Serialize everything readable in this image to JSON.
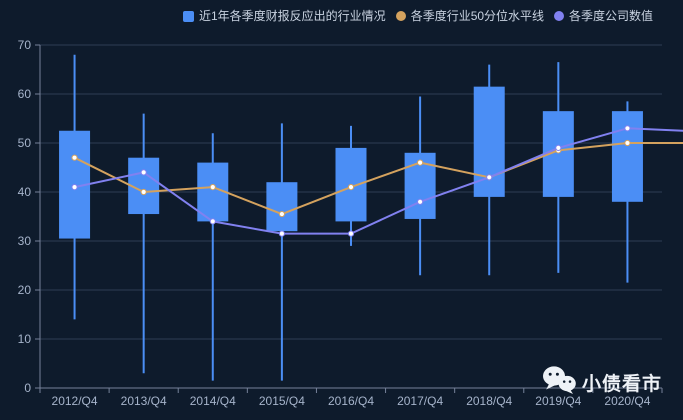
{
  "legend": {
    "items": [
      {
        "label": "近1年各季度财报反应出的行业情况",
        "marker": "square",
        "color": "#4b8ef5"
      },
      {
        "label": "各季度行业50分位水平线",
        "marker": "circle",
        "color": "#d4a25e"
      },
      {
        "label": "各季度公司数值",
        "marker": "circle",
        "color": "#8181f0"
      }
    ]
  },
  "watermark": {
    "text": "小债看市",
    "icon": "wechat-chat-bubbles"
  },
  "colors": {
    "background": "#0e1b2c",
    "bar_fill": "#4b8ef5",
    "median_line": "#d4a25e",
    "company_line": "#8181f0",
    "grid_line": "#2e3d55",
    "axis_line": "#76829a",
    "axis_label": "#a6b4cb",
    "legend_text": "#c9d3e1",
    "watermark_text": "#eef2f7",
    "dot_fill": "#ffffff"
  },
  "chart_data": {
    "type": "candlestick",
    "title": "",
    "xlabel": "",
    "ylabel": "",
    "categories": [
      "2012/Q4",
      "2013/Q4",
      "2014/Q4",
      "2015/Q4",
      "2016/Q4",
      "2017/Q4",
      "2018/Q4",
      "2019/Q4",
      "2020/Q4"
    ],
    "ylim": [
      0,
      70
    ],
    "ytick_interval": 10,
    "grid": "horizontal gridlines on",
    "legend_position": "top-center",
    "series": [
      {
        "name": "近1年各季度财报反应出的行业情况",
        "type": "candlestick",
        "color": "#4b8ef5",
        "boxes": [
          {
            "category": "2012/Q4",
            "low": 14,
            "box_bottom": 30.5,
            "box_top": 52.5,
            "high": 68
          },
          {
            "category": "2013/Q4",
            "low": 3,
            "box_bottom": 35.5,
            "box_top": 47,
            "high": 56
          },
          {
            "category": "2014/Q4",
            "low": 1.5,
            "box_bottom": 34,
            "box_top": 46,
            "high": 52
          },
          {
            "category": "2015/Q4",
            "low": 1.5,
            "box_bottom": 32,
            "box_top": 42,
            "high": 54
          },
          {
            "category": "2016/Q4",
            "low": 29,
            "box_bottom": 34,
            "box_top": 49,
            "high": 53.5
          },
          {
            "category": "2017/Q4",
            "low": 23,
            "box_bottom": 34.5,
            "box_top": 48,
            "high": 59.5
          },
          {
            "category": "2018/Q4",
            "low": 23,
            "box_bottom": 39,
            "box_top": 61.5,
            "high": 66
          },
          {
            "category": "2019/Q4",
            "low": 23.5,
            "box_bottom": 39,
            "box_top": 56.5,
            "high": 66.5
          },
          {
            "category": "2020/Q4",
            "low": 21.5,
            "box_bottom": 38,
            "box_top": 56.5,
            "high": 58.5
          }
        ]
      },
      {
        "name": "各季度行业50分位水平线",
        "type": "line",
        "color": "#d4a25e",
        "values": [
          47,
          40,
          41,
          35.5,
          41,
          46,
          43,
          48.5,
          50
        ],
        "extends_past_right_edge": 50
      },
      {
        "name": "各季度公司数值",
        "type": "line",
        "color": "#8181f0",
        "values": [
          41,
          44,
          34,
          31.5,
          31.5,
          38,
          43,
          49,
          53
        ],
        "extends_past_right_edge": 52.5
      }
    ]
  }
}
